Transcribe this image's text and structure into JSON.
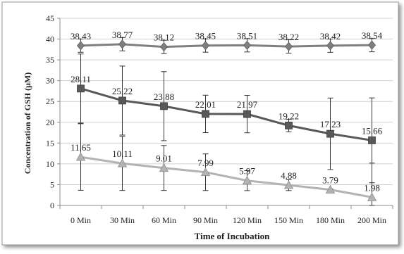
{
  "chart_data": {
    "type": "line",
    "xlabel": "Time of Incubation",
    "ylabel": "Concentration of GSH (μM)",
    "ylim": [
      0,
      45
    ],
    "y_ticks": [
      0,
      5,
      10,
      15,
      20,
      25,
      30,
      35,
      40,
      45
    ],
    "categories": [
      "0 Min",
      "30 Min",
      "60 Min",
      "90 Min",
      "120 Min",
      "150 Min",
      "180 Min",
      "200 Min"
    ],
    "grid": "horizontal",
    "series": [
      {
        "values": [
          38.43,
          38.77,
          38.12,
          38.45,
          38.51,
          38.22,
          38.42,
          38.54
        ],
        "labels": [
          "38.43",
          "38.77",
          "38.12",
          "38.45",
          "38.51",
          "38.22",
          "38.42",
          "38.54"
        ],
        "error": [
          1.6,
          1.6,
          1.6,
          1.6,
          1.6,
          1.6,
          1.6,
          1.6
        ],
        "color": "#7f7f7f",
        "marker": "diamond"
      },
      {
        "values": [
          28.11,
          25.22,
          23.88,
          22.01,
          21.97,
          19.22,
          17.23,
          15.66
        ],
        "labels": [
          "28.11",
          "25.22",
          "23.88",
          "22.01",
          "21.97",
          "19.22",
          "17.23",
          "15.66"
        ],
        "error": [
          8.3,
          8.3,
          8.3,
          4.5,
          4.5,
          1.5,
          8.6,
          10.2
        ],
        "color": "#595959",
        "marker": "square"
      },
      {
        "values": [
          11.65,
          10.11,
          9.01,
          7.99,
          5.97,
          4.88,
          3.79,
          1.98
        ],
        "labels": [
          "11.65",
          "10.11",
          "9.01",
          "7.99",
          "5.97",
          "4.88",
          "3.79",
          "1.98"
        ],
        "error": [
          8.0,
          6.5,
          5.4,
          4.4,
          2.4,
          1.3,
          0.2,
          8.2
        ],
        "color": "#b3b3b3",
        "marker": "triangle"
      }
    ]
  }
}
